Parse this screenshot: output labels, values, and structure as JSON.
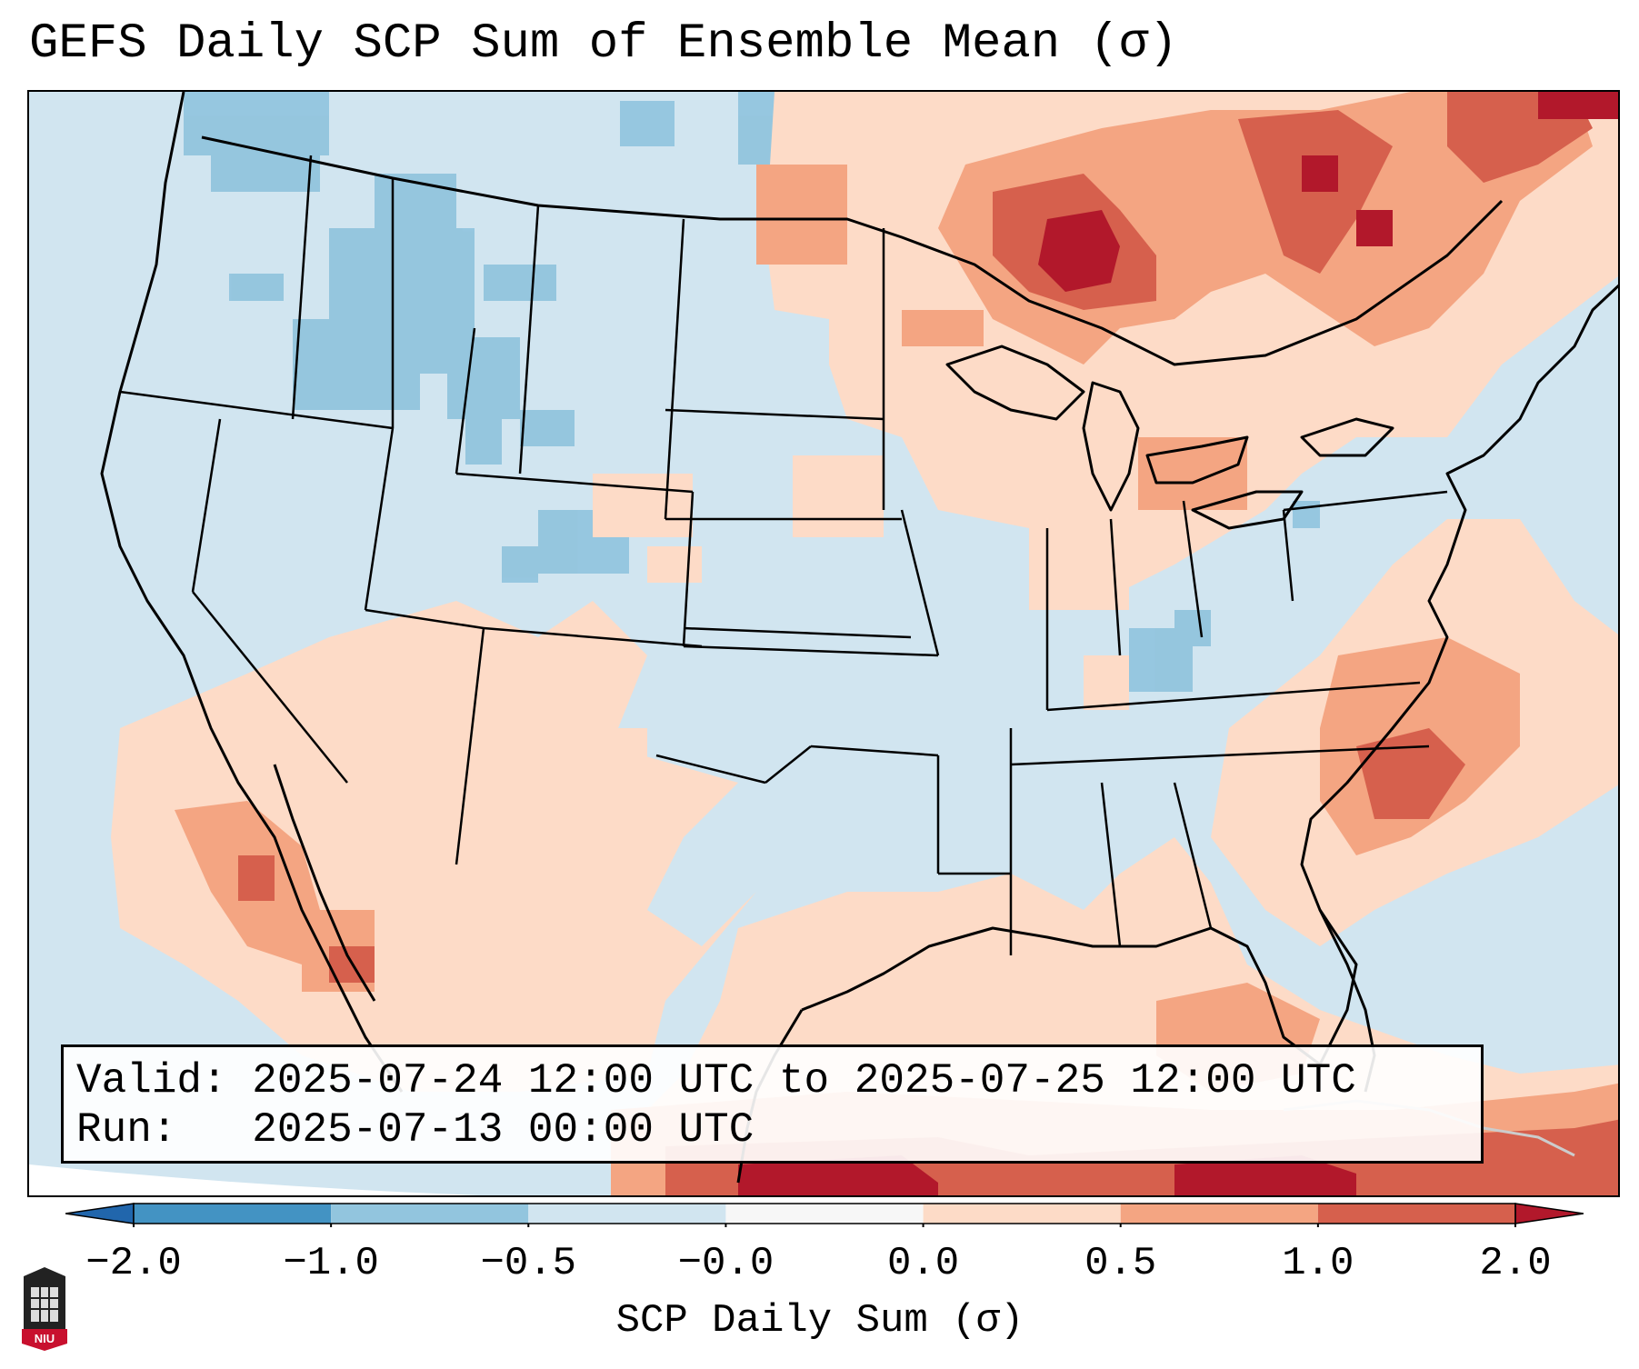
{
  "title": "GEFS Daily SCP Sum of Ensemble Mean (σ)",
  "valid_box": {
    "valid_label": "Valid:",
    "valid_range": "2025-07-24 12:00 UTC to 2025-07-25 12:00 UTC",
    "run_label": "Run:",
    "run_time": "2025-07-13 00:00 UTC"
  },
  "colorbar": {
    "label": "SCP Daily Sum (σ)",
    "ticks": [
      "−2.0",
      "−1.0",
      "−0.5",
      "−0.0",
      "0.0",
      "0.5",
      "1.0",
      "2.0"
    ],
    "colors": {
      "below_min": "#2166ac",
      "bins": [
        "#4393c3",
        "#92c5de",
        "#d1e5f0",
        "#f7f7f7",
        "#fddbc7",
        "#f4a582",
        "#d6604d"
      ],
      "above_max": "#b2182b"
    }
  },
  "map": {
    "projection": "Lambert conformal, CONUS",
    "background_color": "#d1e5f0",
    "regions": {
      "pacific_northwest_rockies": "−1.0 to −0.5",
      "upper_great_lakes_ontario_quebec": "0.5 to 2.0",
      "southwest_mexico": "0.0 to 0.5",
      "western_atlantic": "0.5 to 1.0",
      "caribbean_cuba": "1.0 to 2.0+"
    }
  },
  "logo": {
    "text": "NIU"
  }
}
